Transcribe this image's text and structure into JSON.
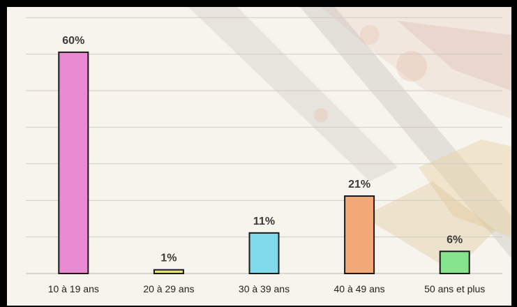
{
  "chart_data": {
    "type": "bar",
    "title": "",
    "xlabel": "",
    "ylabel": "",
    "categories": [
      "10 à 19 ans",
      "20 à 29 ans",
      "30 à 39 ans",
      "40 à 49 ans",
      "50 ans et plus"
    ],
    "values": [
      60,
      1,
      11,
      21,
      6
    ],
    "value_labels": [
      "60%",
      "1%",
      "11%",
      "21%",
      "6%"
    ],
    "colors": [
      "#e98ad2",
      "#e8e47a",
      "#7fd9ea",
      "#f2a877",
      "#86e48e"
    ],
    "ylim": [
      0,
      70
    ],
    "grid": true,
    "legend": "none"
  }
}
